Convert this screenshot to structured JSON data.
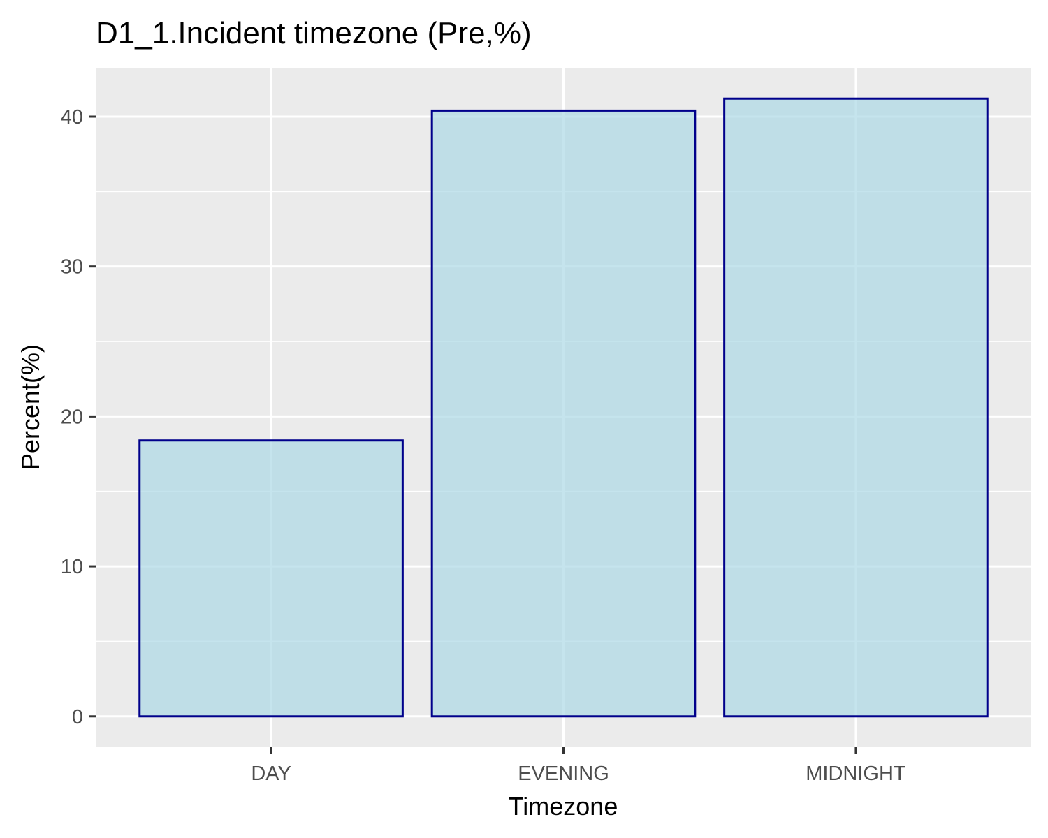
{
  "chart_data": {
    "type": "bar",
    "title": "D1_1.Incident timezone (Pre,%)",
    "xlabel": "Timezone",
    "ylabel": "Percent(%)",
    "categories": [
      "DAY",
      "EVENING",
      "MIDNIGHT"
    ],
    "values": [
      18.4,
      40.4,
      41.2
    ],
    "ylim": [
      -2.06,
      43.26
    ],
    "yticks": [
      0,
      10,
      20,
      30,
      40
    ],
    "grid": true,
    "legend": "none",
    "colors": {
      "bar_fill": "#add8e6",
      "bar_stroke": "#00008b",
      "panel_background": "#ebebeb",
      "grid": "#ffffff",
      "tick_text": "#4d4d4d"
    }
  }
}
